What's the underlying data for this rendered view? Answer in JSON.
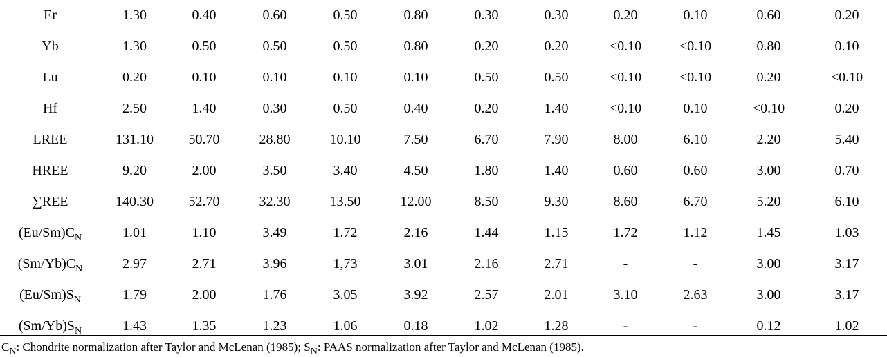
{
  "rows": [
    {
      "label": {
        "main": "Er",
        "paren_sub": "",
        "suffix": "",
        "sub": ""
      },
      "values": [
        "1.30",
        "0.40",
        "0.60",
        "0.50",
        "0.80",
        "0.30",
        "0.30",
        "0.20",
        "0.10",
        "0.60",
        "0.20"
      ]
    },
    {
      "label": {
        "main": "Yb",
        "paren_sub": "",
        "suffix": "",
        "sub": ""
      },
      "values": [
        "1.30",
        "0.50",
        "0.50",
        "0.50",
        "0.80",
        "0.20",
        "0.20",
        "<0.10",
        "<0.10",
        "0.80",
        "0.10"
      ]
    },
    {
      "label": {
        "main": "Lu",
        "paren_sub": "",
        "suffix": "",
        "sub": ""
      },
      "values": [
        "0.20",
        "0.10",
        "0.10",
        "0.10",
        "0.10",
        "0.50",
        "0.50",
        "<0.10",
        "<0.10",
        "0.20",
        "<0.10"
      ]
    },
    {
      "label": {
        "main": "Hf",
        "paren_sub": "",
        "suffix": "",
        "sub": ""
      },
      "values": [
        "2.50",
        "1.40",
        "0.30",
        "0.50",
        "0.40",
        "0.20",
        "1.40",
        "<0.10",
        "0.10",
        "<0.10",
        "0.20"
      ]
    },
    {
      "label": {
        "main": "LREE",
        "paren_sub": "",
        "suffix": "",
        "sub": ""
      },
      "values": [
        "131.10",
        "50.70",
        "28.80",
        "10.10",
        "7.50",
        "6.70",
        "7.90",
        "8.00",
        "6.10",
        "2.20",
        "5.40"
      ]
    },
    {
      "label": {
        "main": "HREE",
        "paren_sub": "",
        "suffix": "",
        "sub": ""
      },
      "values": [
        "9.20",
        "2.00",
        "3.50",
        "3.40",
        "4.50",
        "1.80",
        "1.40",
        "0.60",
        "0.60",
        "3.00",
        "0.70"
      ]
    },
    {
      "label": {
        "main": "∑REE",
        "paren_sub": "",
        "suffix": "",
        "sub": ""
      },
      "values": [
        "140.30",
        "52.70",
        "32.30",
        "13.50",
        "12.00",
        "8.50",
        "9.30",
        "8.60",
        "6.70",
        "5.20",
        "6.10"
      ]
    },
    {
      "label": {
        "main": "(Eu/Sm)",
        "paren_sub": "",
        "suffix": "C",
        "sub": "N"
      },
      "values": [
        "1.01",
        "1.10",
        "3.49",
        "1.72",
        "2.16",
        "1.44",
        "1.15",
        "1.72",
        "1.12",
        "1.45",
        "1.03"
      ]
    },
    {
      "label": {
        "main": "(Sm/Yb)",
        "paren_sub": "",
        "suffix": "C",
        "sub": "N"
      },
      "values": [
        "2.97",
        "2.71",
        "3.96",
        "1,73",
        "3.01",
        "2.16",
        "2.71",
        "-",
        "-",
        "3.00",
        "3.17"
      ]
    },
    {
      "label": {
        "main": "(Eu/Sm)",
        "paren_sub": "",
        "suffix": "S",
        "sub": "N"
      },
      "values": [
        "1.79",
        "2.00",
        "1.76",
        "3.05",
        "3.92",
        "2.57",
        "2.01",
        "3.10",
        "2.63",
        "3.00",
        "3.17"
      ]
    },
    {
      "label": {
        "main": "(Sm/Yb)",
        "paren_sub": "",
        "suffix": "S",
        "sub": "N"
      },
      "values": [
        "1.43",
        "1.35",
        "1.23",
        "1.06",
        "0.18",
        "1.02",
        "1.28",
        "-",
        "-",
        "0.12",
        "1.02"
      ]
    }
  ],
  "footnote": {
    "c_sym": "C",
    "c_sub": "N",
    "c_text": ": Chondrite normalization after Taylor and McLenan (1985); ",
    "s_sym": "S",
    "s_sub": "N",
    "s_text": ": PAAS normalization after Taylor and McLenan (1985)."
  }
}
